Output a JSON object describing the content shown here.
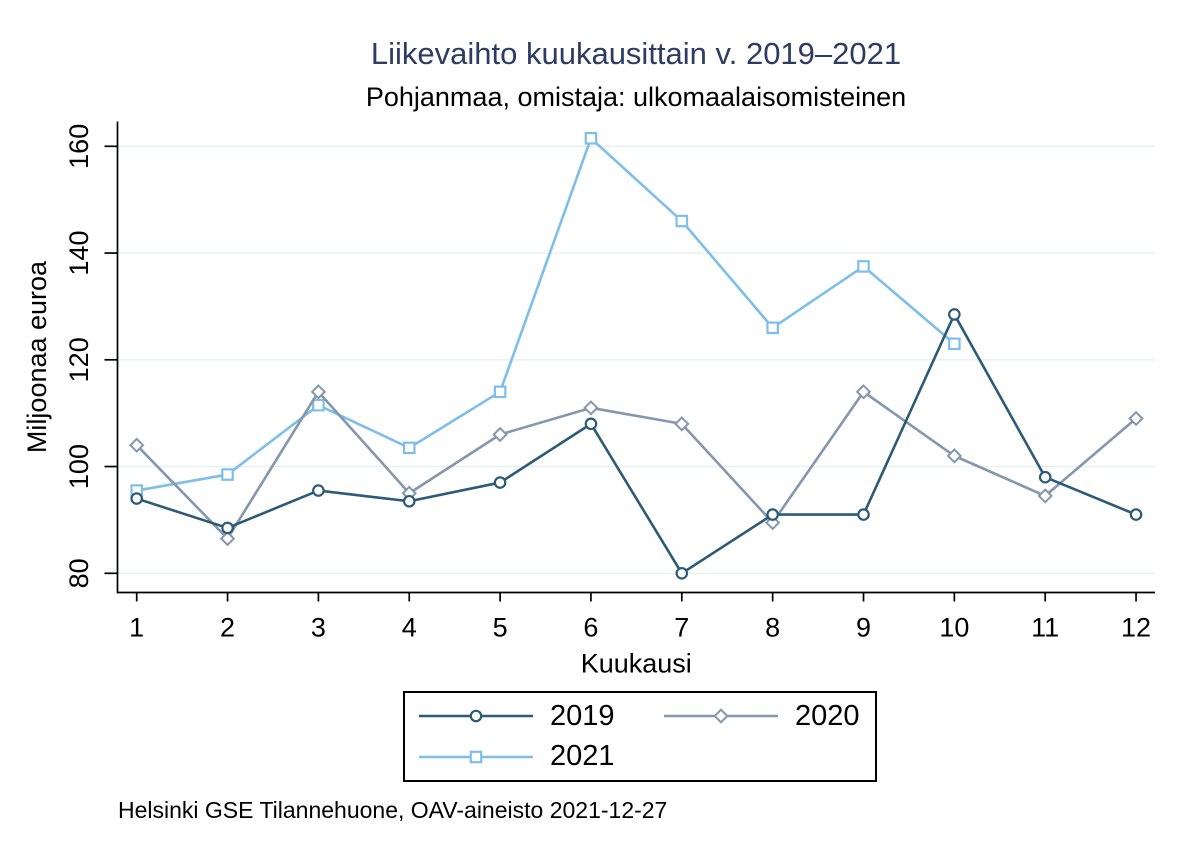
{
  "page": {
    "title_color": "#2D3C62",
    "background": "#FFFFFF"
  },
  "chart_data": {
    "type": "line",
    "title": "Liikevaihto kuukausittain v. 2019–2021",
    "subtitle": "Pohjanmaa, omistaja: ulkomaalaisomisteinen",
    "caption": "Helsinki GSE Tilannehuone, OAV-aineisto 2021-12-27",
    "xlabel": "Kuukausi",
    "ylabel": "Miljoonaa euroa",
    "x": [
      1,
      2,
      3,
      4,
      5,
      6,
      7,
      8,
      9,
      10,
      11,
      12
    ],
    "yticks": [
      80,
      100,
      120,
      140,
      160
    ],
    "ylim": [
      76.4,
      164.6
    ],
    "xlim": [
      0.79,
      12.21
    ],
    "grid": true,
    "gridline_color": "#E6F1F4",
    "axis_color": "#000000",
    "legend_position": "bottom",
    "series": [
      {
        "name": "2019",
        "marker": "circle",
        "color": "#2D5A77",
        "values": [
          94,
          88.5,
          95.5,
          93.5,
          97,
          108,
          80,
          91,
          91,
          128.5,
          98,
          91
        ]
      },
      {
        "name": "2020",
        "marker": "diamond",
        "color": "#8497AC",
        "values": [
          104,
          86.5,
          114,
          95,
          106,
          111,
          108,
          89.5,
          114,
          102,
          94.5,
          109
        ]
      },
      {
        "name": "2021",
        "marker": "square",
        "color": "#7FBEE8",
        "values": [
          95.5,
          98.5,
          111.5,
          103.5,
          114,
          161.5,
          146,
          126,
          137.5,
          123,
          null,
          null
        ]
      }
    ]
  }
}
